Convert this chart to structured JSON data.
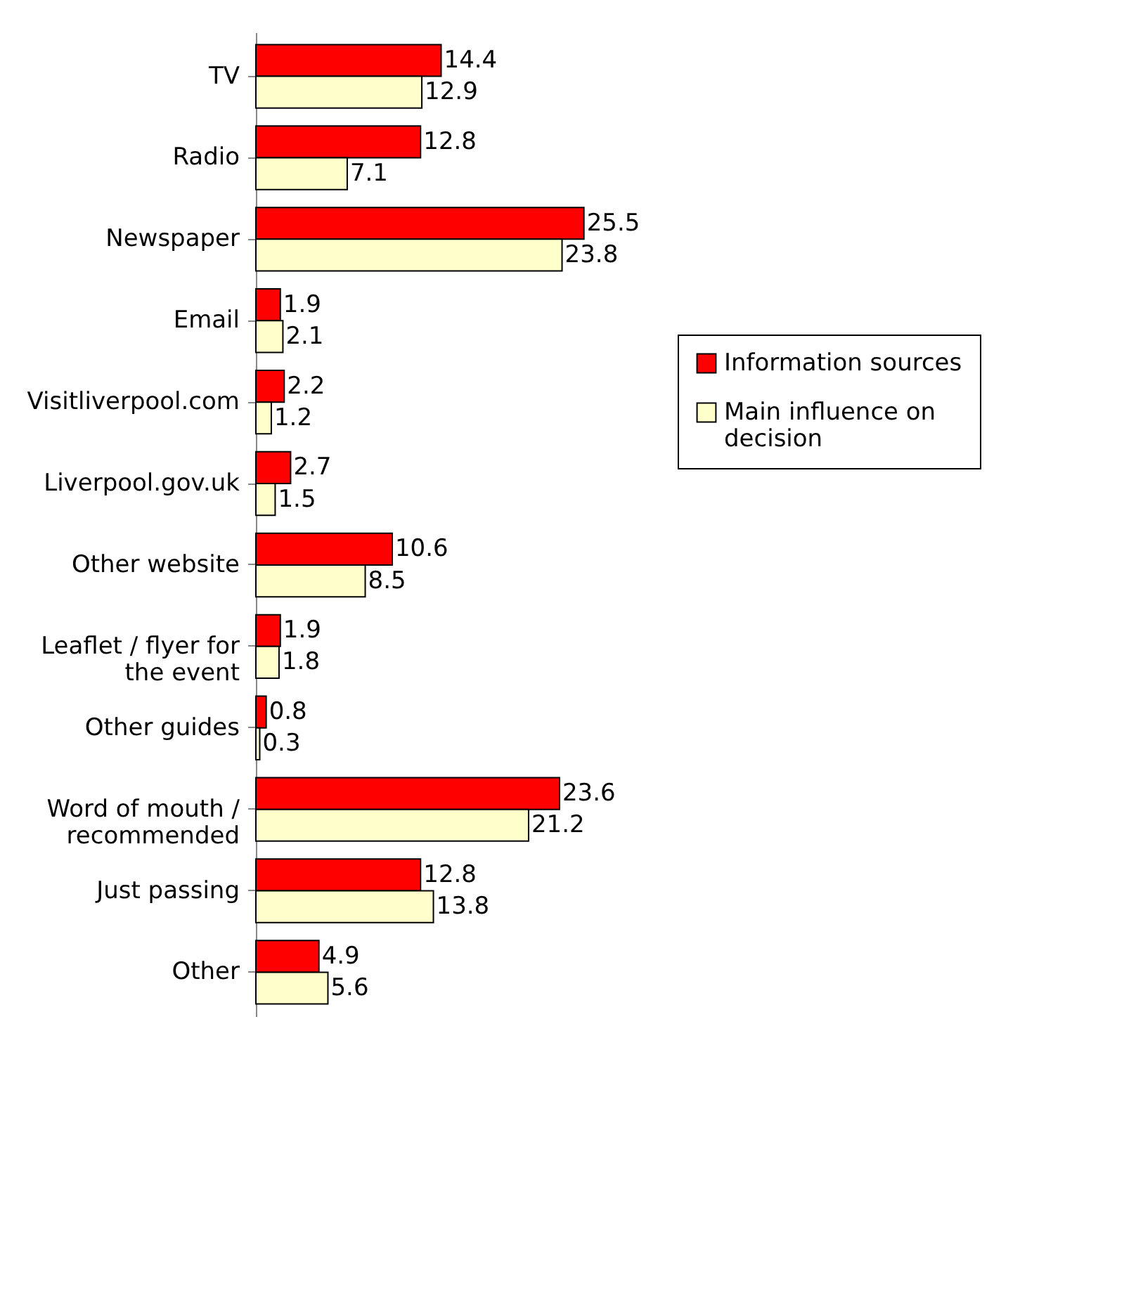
{
  "chart_data": {
    "type": "bar",
    "orientation": "horizontal",
    "categories": [
      "TV",
      "Radio",
      "Newspaper",
      "Email",
      "Visitliverpool.com",
      "Liverpool.gov.uk",
      "Other website",
      "Leaflet / flyer for the event",
      "Other guides",
      "Word of mouth / recommended",
      "Just passing",
      "Other"
    ],
    "series": [
      {
        "name": "Information sources",
        "color": "#ff0000",
        "values": [
          14.4,
          12.8,
          25.5,
          1.9,
          2.2,
          2.7,
          10.6,
          1.9,
          0.8,
          23.6,
          12.8,
          4.9
        ]
      },
      {
        "name": "Main influence on decision",
        "color": "#ffffcc",
        "values": [
          12.9,
          7.1,
          23.8,
          2.1,
          1.2,
          1.5,
          8.5,
          1.8,
          0.3,
          21.2,
          13.8,
          5.6
        ]
      }
    ],
    "data_labels": true,
    "legend": "right"
  }
}
